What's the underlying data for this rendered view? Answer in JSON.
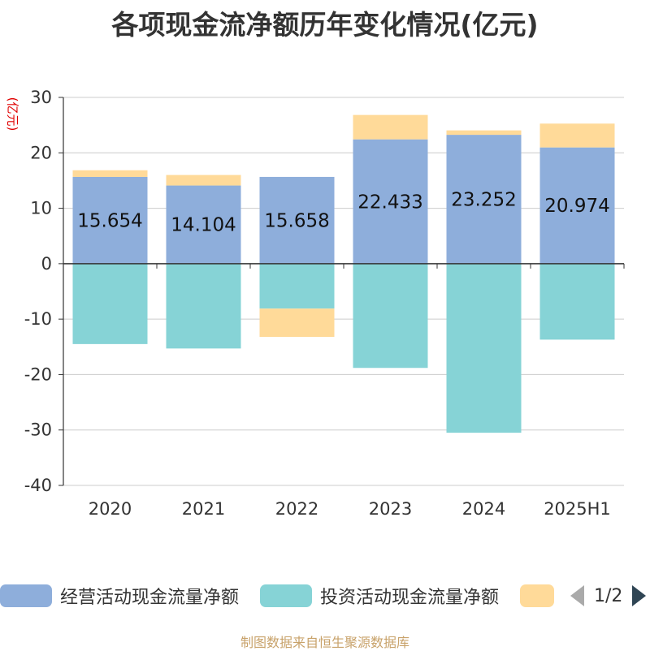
{
  "title": "各项现金流净额历年变化情况(亿元)",
  "unit_label": "(亿元)",
  "source": "制图数据来自恒生聚源数据库",
  "legend": {
    "items": [
      {
        "label": "经营活动现金流量净额",
        "color": "#8eaedb"
      },
      {
        "label": "投资活动现金流量净额",
        "color": "#86d3d6"
      },
      {
        "label": "",
        "color": "#ffda99"
      }
    ],
    "page": "1/2"
  },
  "colors": {
    "operating": "#8eaedb",
    "investing": "#86d3d6",
    "other": "#ffda99",
    "axis": "#333333",
    "grid": "#cccccc"
  },
  "chart_data": {
    "type": "bar",
    "stacked": true,
    "categories": [
      "2020",
      "2021",
      "2022",
      "2023",
      "2024",
      "2025H1"
    ],
    "series": [
      {
        "name": "经营活动现金流量净额",
        "values": [
          15.654,
          14.104,
          15.658,
          22.433,
          23.252,
          20.974
        ]
      },
      {
        "name": "投资活动现金流量净额",
        "values": [
          -14.5,
          -15.3,
          -8.1,
          -18.8,
          -30.5,
          -13.7
        ]
      },
      {
        "name": "",
        "values": [
          1.2,
          1.9,
          -5.1,
          4.4,
          0.8,
          4.3
        ]
      }
    ],
    "data_labels": [
      "15.654",
      "14.104",
      "15.658",
      "22.433",
      "23.252",
      "20.974"
    ],
    "yticks": [
      30,
      20,
      10,
      0,
      -10,
      -20,
      -30,
      -40
    ],
    "ylim": [
      -40,
      30
    ],
    "grid": true,
    "legend_position": "bottom"
  }
}
